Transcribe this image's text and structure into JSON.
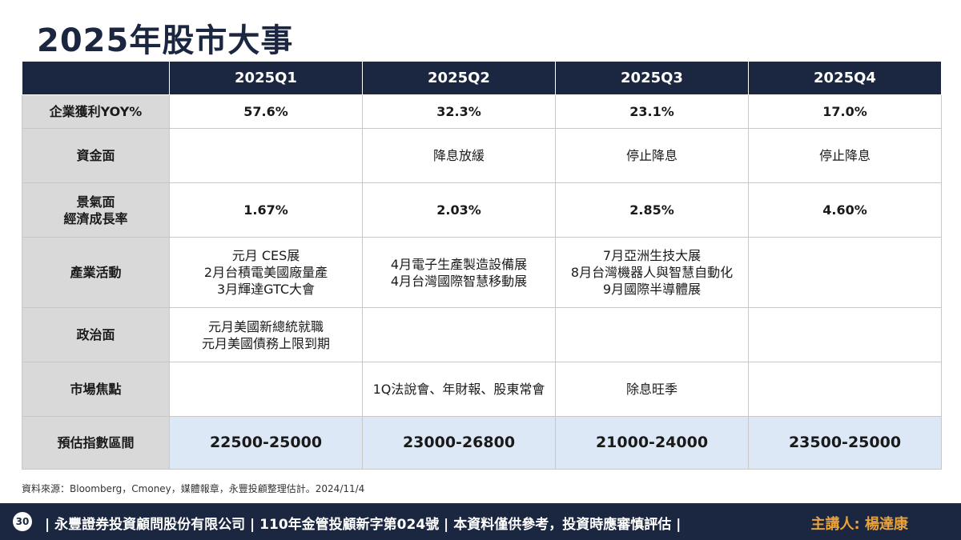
{
  "title": "2025年股市大事",
  "table": {
    "headers": [
      "",
      "2025Q1",
      "2025Q2",
      "2025Q3",
      "2025Q4"
    ],
    "rows": [
      {
        "label": "企業獲利YOY%",
        "cells": [
          [
            "57.6%"
          ],
          [
            "32.3%"
          ],
          [
            "23.1%"
          ],
          [
            "17.0%"
          ]
        ]
      },
      {
        "label": "資金面",
        "cells": [
          [
            ""
          ],
          [
            "降息放緩"
          ],
          [
            "停止降息"
          ],
          [
            "停止降息"
          ]
        ]
      },
      {
        "label": [
          "景氣面",
          "經濟成長率"
        ],
        "cells": [
          [
            "1.67%"
          ],
          [
            "2.03%"
          ],
          [
            "2.85%"
          ],
          [
            "4.60%"
          ]
        ]
      },
      {
        "label": "產業活動",
        "cells": [
          [
            "元月 CES展",
            "2月台積電美國廠量產",
            "3月輝達GTC大會"
          ],
          [
            "4月電子生產製造設備展",
            "4月台灣國際智慧移動展"
          ],
          [
            "7月亞洲生技大展",
            "8月台灣機器人與智慧自動化",
            "9月國際半導體展"
          ],
          [
            ""
          ]
        ]
      },
      {
        "label": "政治面",
        "cells": [
          [
            "元月美國新總統就職",
            "元月美國債務上限到期"
          ],
          [
            ""
          ],
          [
            ""
          ],
          [
            ""
          ]
        ]
      },
      {
        "label": "市場焦點",
        "cells": [
          [
            ""
          ],
          [
            "1Q法說會、年財報、股東常會"
          ],
          [
            "除息旺季"
          ],
          [
            ""
          ]
        ]
      },
      {
        "label": "預估指數區間",
        "cells": [
          [
            "22500-25000"
          ],
          [
            "23000-26800"
          ],
          [
            "21000-24000"
          ],
          [
            "23500-25000"
          ]
        ]
      }
    ]
  },
  "source": "資料來源：Bloomberg，Cmoney，媒體報章，永豐投顧整理估計。2024/11/4",
  "footer": {
    "page_number": "30",
    "text": "| 永豐證券投資顧問股份有限公司 | 110年金管投顧新字第024號 | 本資料僅供參考，投資時應審慎評估 |",
    "speaker": "主講人: 楊達康"
  },
  "colors": {
    "navy": "#1b2740",
    "header_gray": "#d9d9d9",
    "forecast_blue": "#dce8f5",
    "speaker_orange": "#e8a33d"
  }
}
